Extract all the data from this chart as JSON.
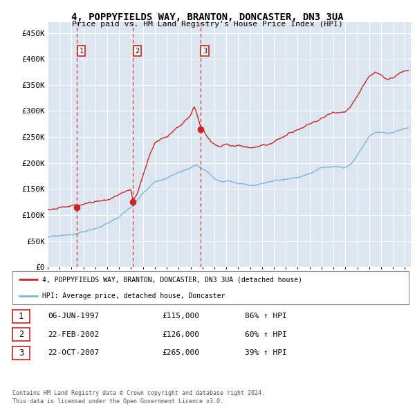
{
  "title": "4, POPPYFIELDS WAY, BRANTON, DONCASTER, DN3 3UA",
  "subtitle": "Price paid vs. HM Land Registry's House Price Index (HPI)",
  "hpi_color": "#7ab4d8",
  "price_color": "#cc2222",
  "plot_bg_color": "#dce6f1",
  "grid_color": "#ffffff",
  "ylim": [
    0,
    470000
  ],
  "yticks": [
    0,
    50000,
    100000,
    150000,
    200000,
    250000,
    300000,
    350000,
    400000,
    450000
  ],
  "ytick_labels": [
    "£0",
    "£50K",
    "£100K",
    "£150K",
    "£200K",
    "£250K",
    "£300K",
    "£350K",
    "£400K",
    "£450K"
  ],
  "xlim": [
    1995.0,
    2025.5
  ],
  "xticks": [
    1995,
    1996,
    1997,
    1998,
    1999,
    2000,
    2001,
    2002,
    2003,
    2004,
    2005,
    2006,
    2007,
    2008,
    2009,
    2010,
    2011,
    2012,
    2013,
    2014,
    2015,
    2016,
    2017,
    2018,
    2019,
    2020,
    2021,
    2022,
    2023,
    2024,
    2025
  ],
  "transactions": [
    {
      "date": 1997.44,
      "price": 115000,
      "label": "1"
    },
    {
      "date": 2002.14,
      "price": 126000,
      "label": "2"
    },
    {
      "date": 2007.81,
      "price": 265000,
      "label": "3"
    }
  ],
  "legend_line1": "4, POPPYFIELDS WAY, BRANTON, DONCASTER, DN3 3UA (detached house)",
  "legend_line2": "HPI: Average price, detached house, Doncaster",
  "table_rows": [
    {
      "num": "1",
      "date": "06-JUN-1997",
      "price": "£115,000",
      "hpi": "86% ↑ HPI"
    },
    {
      "num": "2",
      "date": "22-FEB-2002",
      "price": "£126,000",
      "hpi": "60% ↑ HPI"
    },
    {
      "num": "3",
      "date": "22-OCT-2007",
      "price": "£265,000",
      "hpi": "39% ↑ HPI"
    }
  ],
  "footnote": "Contains HM Land Registry data © Crown copyright and database right 2024.\nThis data is licensed under the Open Government Licence v3.0."
}
